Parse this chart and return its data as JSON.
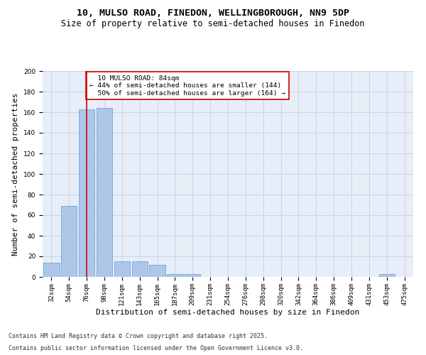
{
  "title1": "10, MULSO ROAD, FINEDON, WELLINGBOROUGH, NN9 5DP",
  "title2": "Size of property relative to semi-detached houses in Finedon",
  "xlabel": "Distribution of semi-detached houses by size in Finedon",
  "ylabel": "Number of semi-detached properties",
  "categories": [
    "32sqm",
    "54sqm",
    "76sqm",
    "98sqm",
    "121sqm",
    "143sqm",
    "165sqm",
    "187sqm",
    "209sqm",
    "231sqm",
    "254sqm",
    "276sqm",
    "298sqm",
    "320sqm",
    "342sqm",
    "364sqm",
    "386sqm",
    "409sqm",
    "431sqm",
    "453sqm",
    "475sqm"
  ],
  "values": [
    14,
    69,
    163,
    164,
    15,
    15,
    12,
    3,
    3,
    0,
    0,
    0,
    0,
    0,
    0,
    0,
    0,
    0,
    0,
    3,
    0
  ],
  "bar_color": "#aec6e8",
  "bar_edge_color": "#5a9fd4",
  "property_size_label": "10 MULSO ROAD: 84sqm",
  "pct_smaller": 44,
  "num_smaller": 144,
  "pct_larger": 50,
  "num_larger": 164,
  "vline_color": "#cc0000",
  "annotation_box_color": "#cc0000",
  "grid_color": "#c8d4e8",
  "background_color": "#e8eef8",
  "footnote1": "Contains HM Land Registry data © Crown copyright and database right 2025.",
  "footnote2": "Contains public sector information licensed under the Open Government Licence v3.0.",
  "ylim": [
    0,
    200
  ],
  "yticks": [
    0,
    20,
    40,
    60,
    80,
    100,
    120,
    140,
    160,
    180,
    200
  ],
  "vline_x_index": 2,
  "title_fontsize": 9.5,
  "subtitle_fontsize": 8.5,
  "axis_fontsize": 8,
  "tick_fontsize": 6.5,
  "footnote_fontsize": 6
}
